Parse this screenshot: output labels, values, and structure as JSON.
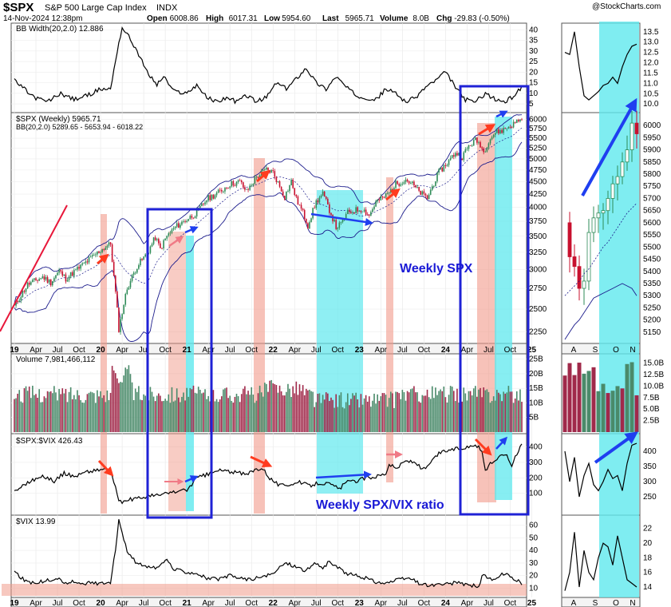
{
  "header": {
    "symbol": "$SPX",
    "name": "S&P 500 Large Cap Index",
    "exchange": "INDX",
    "watermark": "@StockCharts.com",
    "datetime": "14-Nov-2024 12:38pm",
    "quote_labels": [
      "Open",
      "High",
      "Low",
      "Last",
      "Volume",
      "Chg"
    ],
    "quote_values": [
      "6008.86",
      "6017.31",
      "5954.60",
      "5965.71",
      "8.0B",
      "-29.83 (-0.50%)"
    ]
  },
  "panels": {
    "bb_width": {
      "label": "BB Width(20,2.0) 12.886",
      "ticks": [
        "5",
        "10",
        "15",
        "20",
        "25",
        "30",
        "35",
        "40"
      ],
      "right_ticks": [
        "10.0",
        "10.5",
        "11.0",
        "11.5",
        "12.0",
        "12.5",
        "13.0",
        "13.5"
      ]
    },
    "price": {
      "label": "$SPX (Weekly) 5965.71",
      "bb_label": "BB(20,2.0) 5289.65 - 5653.94 - 6018.22",
      "ticks": [
        "2250",
        "2500",
        "2750",
        "3000",
        "3250",
        "3500",
        "3750",
        "4000",
        "4250",
        "4500",
        "4750",
        "5000",
        "5250",
        "5500",
        "5750",
        "6000"
      ],
      "right_ticks": [
        "5150",
        "5200",
        "5250",
        "5300",
        "5350",
        "5400",
        "5450",
        "5500",
        "5550",
        "5600",
        "5650",
        "5700",
        "5750",
        "5800",
        "5850",
        "5900",
        "5950",
        "6000"
      ]
    },
    "volume": {
      "label": "Volume 7,981,466,112",
      "ticks": [
        "5B",
        "10B",
        "15B",
        "20B",
        "25B"
      ],
      "right_ticks": [
        "2.5B",
        "5.0B",
        "7.5B",
        "10.0B",
        "12.5B",
        "15.0B"
      ]
    },
    "ratio": {
      "label": "$SPX:$VIX 426.43",
      "ticks": [
        "100",
        "200",
        "300",
        "400"
      ],
      "right_ticks": [
        "250",
        "300",
        "350",
        "400"
      ]
    },
    "vix": {
      "label": "$VIX 13.99",
      "ticks": [
        "10",
        "20",
        "30",
        "40",
        "50",
        "60"
      ],
      "right_ticks": [
        "14",
        "16",
        "18",
        "20",
        "22"
      ]
    }
  },
  "x_axis_main": [
    "19",
    "Apr",
    "Jul",
    "Oct",
    "20",
    "Apr",
    "Jul",
    "Oct",
    "21",
    "Apr",
    "Jul",
    "Oct",
    "22",
    "Apr",
    "Jul",
    "Oct",
    "23",
    "Apr",
    "Jul",
    "Oct",
    "24",
    "Apr",
    "Jul",
    "Oct",
    "25"
  ],
  "x_axis_inset": [
    "A",
    "S",
    "O",
    "N"
  ],
  "annotations": {
    "weekly_spx": "Weekly SPX",
    "weekly_ratio": "Weekly SPX/VIX ratio"
  },
  "colors": {
    "up": "#2e8b57",
    "down": "#c8102e",
    "vol_up": "#4a8a6a",
    "vol_down": "#a0294a",
    "bb": "#1c1c8c",
    "blue_box": "#1f22d6",
    "cyan": "#5fe8ee",
    "pink": "#f19a8a",
    "arrow_red": "#ff3b1f",
    "arrow_blue": "#1f3ff0"
  },
  "chart_data": {
    "type": "line",
    "x": [
      "2019-01",
      "2019-04",
      "2019-07",
      "2019-10",
      "2020-01",
      "2020-04",
      "2020-07",
      "2020-10",
      "2021-01",
      "2021-04",
      "2021-07",
      "2021-10",
      "2022-01",
      "2022-04",
      "2022-07",
      "2022-10",
      "2023-01",
      "2023-04",
      "2023-07",
      "2023-10",
      "2024-01",
      "2024-04",
      "2024-07",
      "2024-10",
      "2024-11"
    ],
    "series": [
      {
        "name": "$SPX (Weekly)",
        "values": [
          2580,
          2890,
          2980,
          3040,
          3280,
          2750,
          3200,
          3360,
          3760,
          4150,
          4380,
          4590,
          4600,
          4150,
          3900,
          3800,
          3970,
          4150,
          4550,
          4200,
          4840,
          5100,
          5450,
          5800,
          5965
        ]
      },
      {
        "name": "BB Width(20,2.0)",
        "values": [
          16,
          8,
          6,
          9,
          12,
          40,
          20,
          14,
          10,
          12,
          6,
          8,
          14,
          18,
          15,
          12,
          10,
          8,
          7,
          10,
          12,
          8,
          10,
          6,
          12.9
        ]
      },
      {
        "name": "$SPX:$VIX",
        "values": [
          150,
          190,
          210,
          250,
          240,
          50,
          120,
          130,
          170,
          220,
          240,
          230,
          200,
          150,
          160,
          140,
          210,
          250,
          310,
          250,
          360,
          320,
          400,
          300,
          426
        ]
      },
      {
        "name": "$VIX",
        "values": [
          25,
          14,
          15,
          14,
          18,
          50,
          26,
          28,
          22,
          18,
          17,
          16,
          20,
          28,
          27,
          30,
          20,
          18,
          14,
          17,
          13,
          15,
          14,
          20,
          13.99
        ]
      }
    ]
  }
}
